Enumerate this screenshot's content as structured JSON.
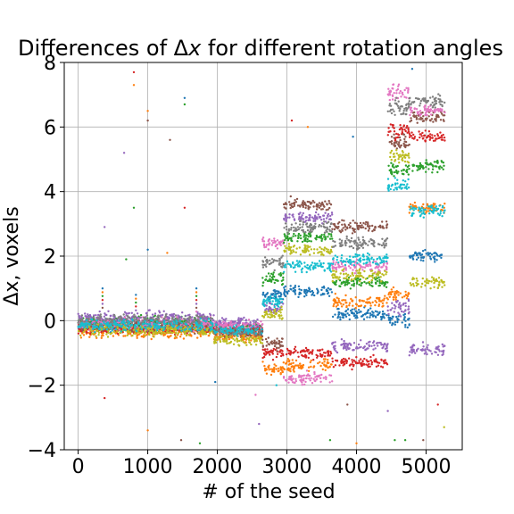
{
  "chart_data": {
    "type": "scatter",
    "title_prefix": "Differences of Δ",
    "title_var": "x",
    "title_suffix": " for different rotation angles",
    "xlabel": "# of the seed",
    "ylabel": "Δx, voxels",
    "xlim": [
      -200,
      5520
    ],
    "ylim": [
      -4,
      8
    ],
    "xticks": [
      0,
      1000,
      2000,
      3000,
      4000,
      5000
    ],
    "yticks": [
      -4,
      -2,
      0,
      2,
      4,
      6,
      8
    ],
    "xtick_labels": [
      "0",
      "1000",
      "2000",
      "3000",
      "4000",
      "5000"
    ],
    "ytick_labels": [
      "−4",
      "−2",
      "0",
      "2",
      "4",
      "6",
      "8"
    ],
    "grid": true,
    "legend": "none",
    "marker_size": 2,
    "colors": [
      "#1f77b4",
      "#ff7f0e",
      "#2ca02c",
      "#d62728",
      "#9467bd",
      "#8c564b",
      "#e377c2",
      "#7f7f7f",
      "#bcbd22",
      "#17becf"
    ],
    "segments": [
      {
        "x": [
          0,
          1950
        ],
        "levels": [
          -0.15,
          -0.35,
          -0.05,
          -0.25,
          0.1,
          -0.2,
          -0.1,
          0.0,
          -0.3,
          -0.15
        ],
        "spread": 0.15
      },
      {
        "x": [
          1950,
          2650
        ],
        "levels": [
          -0.3,
          -0.5,
          -0.2,
          -0.25,
          -0.05,
          -0.4,
          -0.15,
          -0.35,
          -0.6,
          -0.3
        ],
        "spread": 0.12
      },
      {
        "x": [
          2650,
          2950
        ],
        "levels": [
          0.8,
          -1.5,
          1.3,
          -1.0,
          0.4,
          -0.7,
          2.4,
          1.8,
          0.2,
          0.6
        ],
        "spread": 0.15
      },
      {
        "x": [
          2950,
          3650
        ],
        "levels": [
          0.9,
          -1.4,
          2.6,
          -1.0,
          3.2,
          3.6,
          -1.8,
          2.9,
          2.2,
          1.7
        ],
        "spread": 0.15
      },
      {
        "x": [
          3650,
          4450
        ],
        "levels": [
          0.2,
          0.6,
          1.2,
          -1.3,
          -0.8,
          2.9,
          1.7,
          2.4,
          1.4,
          1.9
        ],
        "spread": 0.15
      },
      {
        "x": [
          4450,
          4760
        ],
        "levels": [
          0.0,
          0.8,
          4.7,
          5.9,
          0.4,
          5.5,
          7.1,
          6.6,
          5.1,
          4.2
        ],
        "spread": 0.2
      },
      {
        "x": [
          4760,
          5270
        ],
        "levels": [
          2.0,
          3.5,
          4.8,
          5.7,
          -0.9,
          6.3,
          6.5,
          6.8,
          1.2,
          3.4
        ],
        "spread": 0.15
      }
    ],
    "outliers": [
      {
        "x": 800,
        "y": 7.7,
        "c": 3
      },
      {
        "x": 800,
        "y": 7.3,
        "c": 1
      },
      {
        "x": 1000,
        "y": 6.5,
        "c": 1
      },
      {
        "x": 1000,
        "y": 6.2,
        "c": 5
      },
      {
        "x": 1530,
        "y": 6.9,
        "c": 0
      },
      {
        "x": 1530,
        "y": 6.7,
        "c": 2
      },
      {
        "x": 1320,
        "y": 5.6,
        "c": 5
      },
      {
        "x": 660,
        "y": 5.2,
        "c": 4
      },
      {
        "x": 800,
        "y": 3.5,
        "c": 2
      },
      {
        "x": 1530,
        "y": 3.5,
        "c": 3
      },
      {
        "x": 380,
        "y": 2.9,
        "c": 4
      },
      {
        "x": 1000,
        "y": 2.2,
        "c": 0
      },
      {
        "x": 1280,
        "y": 2.1,
        "c": 1
      },
      {
        "x": 690,
        "y": 1.9,
        "c": 2
      },
      {
        "x": 380,
        "y": -2.4,
        "c": 3
      },
      {
        "x": 1000,
        "y": -3.4,
        "c": 1
      },
      {
        "x": 1480,
        "y": -3.7,
        "c": 5
      },
      {
        "x": 1750,
        "y": -3.8,
        "c": 2
      },
      {
        "x": 1970,
        "y": -1.9,
        "c": 0
      },
      {
        "x": 2550,
        "y": -2.3,
        "c": 6
      },
      {
        "x": 2600,
        "y": -3.2,
        "c": 4
      },
      {
        "x": 3070,
        "y": 6.2,
        "c": 3
      },
      {
        "x": 3300,
        "y": 6.0,
        "c": 1
      },
      {
        "x": 3950,
        "y": 5.7,
        "c": 0
      },
      {
        "x": 3870,
        "y": -2.6,
        "c": 5
      },
      {
        "x": 3620,
        "y": -3.7,
        "c": 2
      },
      {
        "x": 4000,
        "y": -3.8,
        "c": 1
      },
      {
        "x": 4450,
        "y": -2.8,
        "c": 4
      },
      {
        "x": 4550,
        "y": -3.7,
        "c": 2
      },
      {
        "x": 4700,
        "y": -3.7,
        "c": 2
      },
      {
        "x": 4960,
        "y": -3.7,
        "c": 5
      },
      {
        "x": 5260,
        "y": -3.3,
        "c": 8
      },
      {
        "x": 5170,
        "y": -2.6,
        "c": 3
      },
      {
        "x": 4800,
        "y": 7.8,
        "c": 0
      },
      {
        "x": 2850,
        "y": -2.0,
        "c": 9
      }
    ],
    "clusters": [
      {
        "x": 350,
        "y": 1.0,
        "n": 6
      },
      {
        "x": 1700,
        "y": 1.0,
        "n": 8
      },
      {
        "x": 830,
        "y": 0.8,
        "n": 5
      }
    ]
  }
}
